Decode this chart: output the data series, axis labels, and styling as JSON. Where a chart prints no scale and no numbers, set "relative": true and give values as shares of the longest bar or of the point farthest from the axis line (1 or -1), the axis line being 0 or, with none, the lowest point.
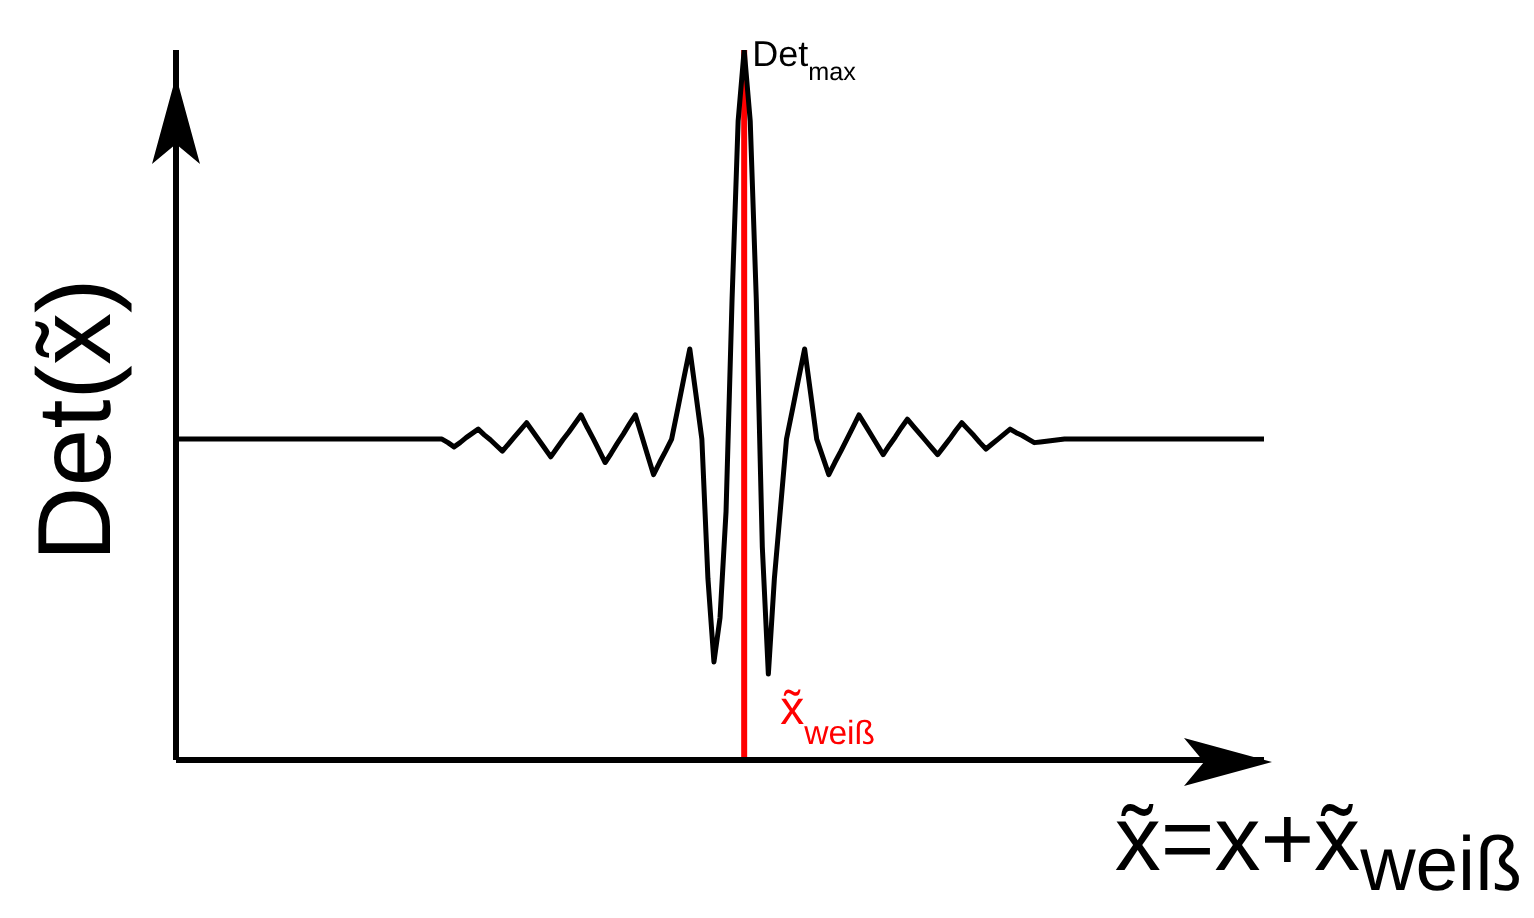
{
  "chart_data": {
    "type": "line",
    "relative": true,
    "ylabel": "Det(x̃)",
    "xlabel": "x̃=x+x̃$_{weiß}$",
    "grid": false,
    "legend": false,
    "marker": "none",
    "line_style": "solid",
    "annotations": [
      "Det$_{max}$",
      "x̃$_{weiß}$"
    ],
    "categories": [
      null,
      null,
      null,
      null,
      null,
      null,
      null,
      null,
      null,
      null,
      null,
      null,
      null,
      null,
      null,
      null,
      null,
      null,
      null,
      null,
      null,
      null,
      null,
      null,
      null,
      null,
      null,
      null,
      null,
      null,
      null,
      null,
      null,
      null,
      null,
      null,
      null,
      null,
      null,
      null,
      null,
      null,
      null,
      null,
      null,
      null,
      null,
      null,
      null,
      null,
      null,
      null,
      null,
      null,
      null,
      null,
      null,
      null,
      null,
      null,
      null,
      null,
      null,
      null,
      null,
      null,
      null,
      null,
      null,
      null,
      null,
      null,
      null,
      null,
      null,
      null,
      null,
      null,
      null,
      null,
      null,
      null,
      null,
      null,
      null,
      null,
      null,
      null,
      null,
      null,
      null,
      null,
      null,
      null,
      null,
      null,
      null,
      null,
      null,
      null,
      null,
      null,
      null,
      null,
      null,
      null,
      null,
      null,
      null,
      null,
      null,
      null,
      null,
      null,
      null,
      null,
      null,
      null,
      null,
      null,
      null,
      null,
      null,
      null,
      null,
      null,
      null,
      null,
      null,
      null,
      null,
      null,
      null,
      null,
      null,
      null,
      null,
      null,
      null,
      null,
      null,
      null,
      null,
      null,
      null,
      null,
      null,
      null,
      null,
      null,
      null,
      null,
      null,
      null,
      null,
      null,
      null,
      null,
      null,
      null,
      null,
      null,
      null,
      null,
      null,
      null,
      null,
      null,
      null,
      null,
      null,
      null,
      null,
      null,
      null,
      null,
      null,
      null,
      null,
      null,
      null
    ],
    "series": [
      {
        "color": "#000000",
        "values": [
          0.452,
          0.452,
          0.452,
          0.452,
          0.452,
          0.452,
          0.452,
          0.452,
          0.452,
          0.452,
          0.452,
          0.452,
          0.452,
          0.452,
          0.452,
          0.452,
          0.452,
          0.452,
          0.452,
          0.452,
          0.452,
          0.452,
          0.452,
          0.452,
          0.452,
          0.452,
          0.452,
          0.452,
          0.452,
          0.452,
          0.452,
          0.452,
          0.452,
          0.452,
          0.452,
          0.452,
          0.452,
          0.452,
          0.452,
          0.452,
          0.452,
          0.452,
          0.452,
          0.452,
          0.452,
          0.447,
          0.441,
          0.447,
          0.454,
          0.46,
          0.466,
          0.458,
          0.451,
          0.443,
          0.435,
          0.445,
          0.455,
          0.465,
          0.475,
          0.463,
          0.451,
          0.439,
          0.427,
          0.439,
          0.451,
          0.462,
          0.474,
          0.486,
          0.469,
          0.453,
          0.436,
          0.419,
          0.432,
          0.446,
          0.459,
          0.473,
          0.486,
          0.458,
          0.43,
          0.402,
          0.419,
          0.435,
          0.452,
          0.494,
          0.537,
          0.579,
          0.516,
          0.452,
          0.256,
          0.138,
          0.2,
          0.35,
          0.65,
          0.9,
          1,
          0.9,
          0.65,
          0.3,
          0.121,
          0.256,
          0.354,
          0.452,
          0.494,
          0.537,
          0.579,
          0.516,
          0.452,
          0.427,
          0.402,
          0.419,
          0.435,
          0.452,
          0.469,
          0.486,
          0.472,
          0.458,
          0.444,
          0.43,
          0.443,
          0.455,
          0.468,
          0.48,
          0.47,
          0.46,
          0.45,
          0.44,
          0.43,
          0.441,
          0.452,
          0.464,
          0.475,
          0.466,
          0.457,
          0.447,
          0.438,
          0.445,
          0.452,
          0.459,
          0.466,
          0.461,
          0.457,
          0.452,
          0.447,
          0.448,
          0.449,
          0.45,
          0.451,
          0.452,
          0.452,
          0.452,
          0.452,
          0.452,
          0.452,
          0.452,
          0.452,
          0.452,
          0.452,
          0.452,
          0.452,
          0.452,
          0.452,
          0.452,
          0.452,
          0.452,
          0.452,
          0.452,
          0.452,
          0.452,
          0.452,
          0.452,
          0.452,
          0.452,
          0.452,
          0.452,
          0.452,
          0.452,
          0.452,
          0.452,
          0.452,
          0.452,
          0.452
        ]
      }
    ]
  }
}
